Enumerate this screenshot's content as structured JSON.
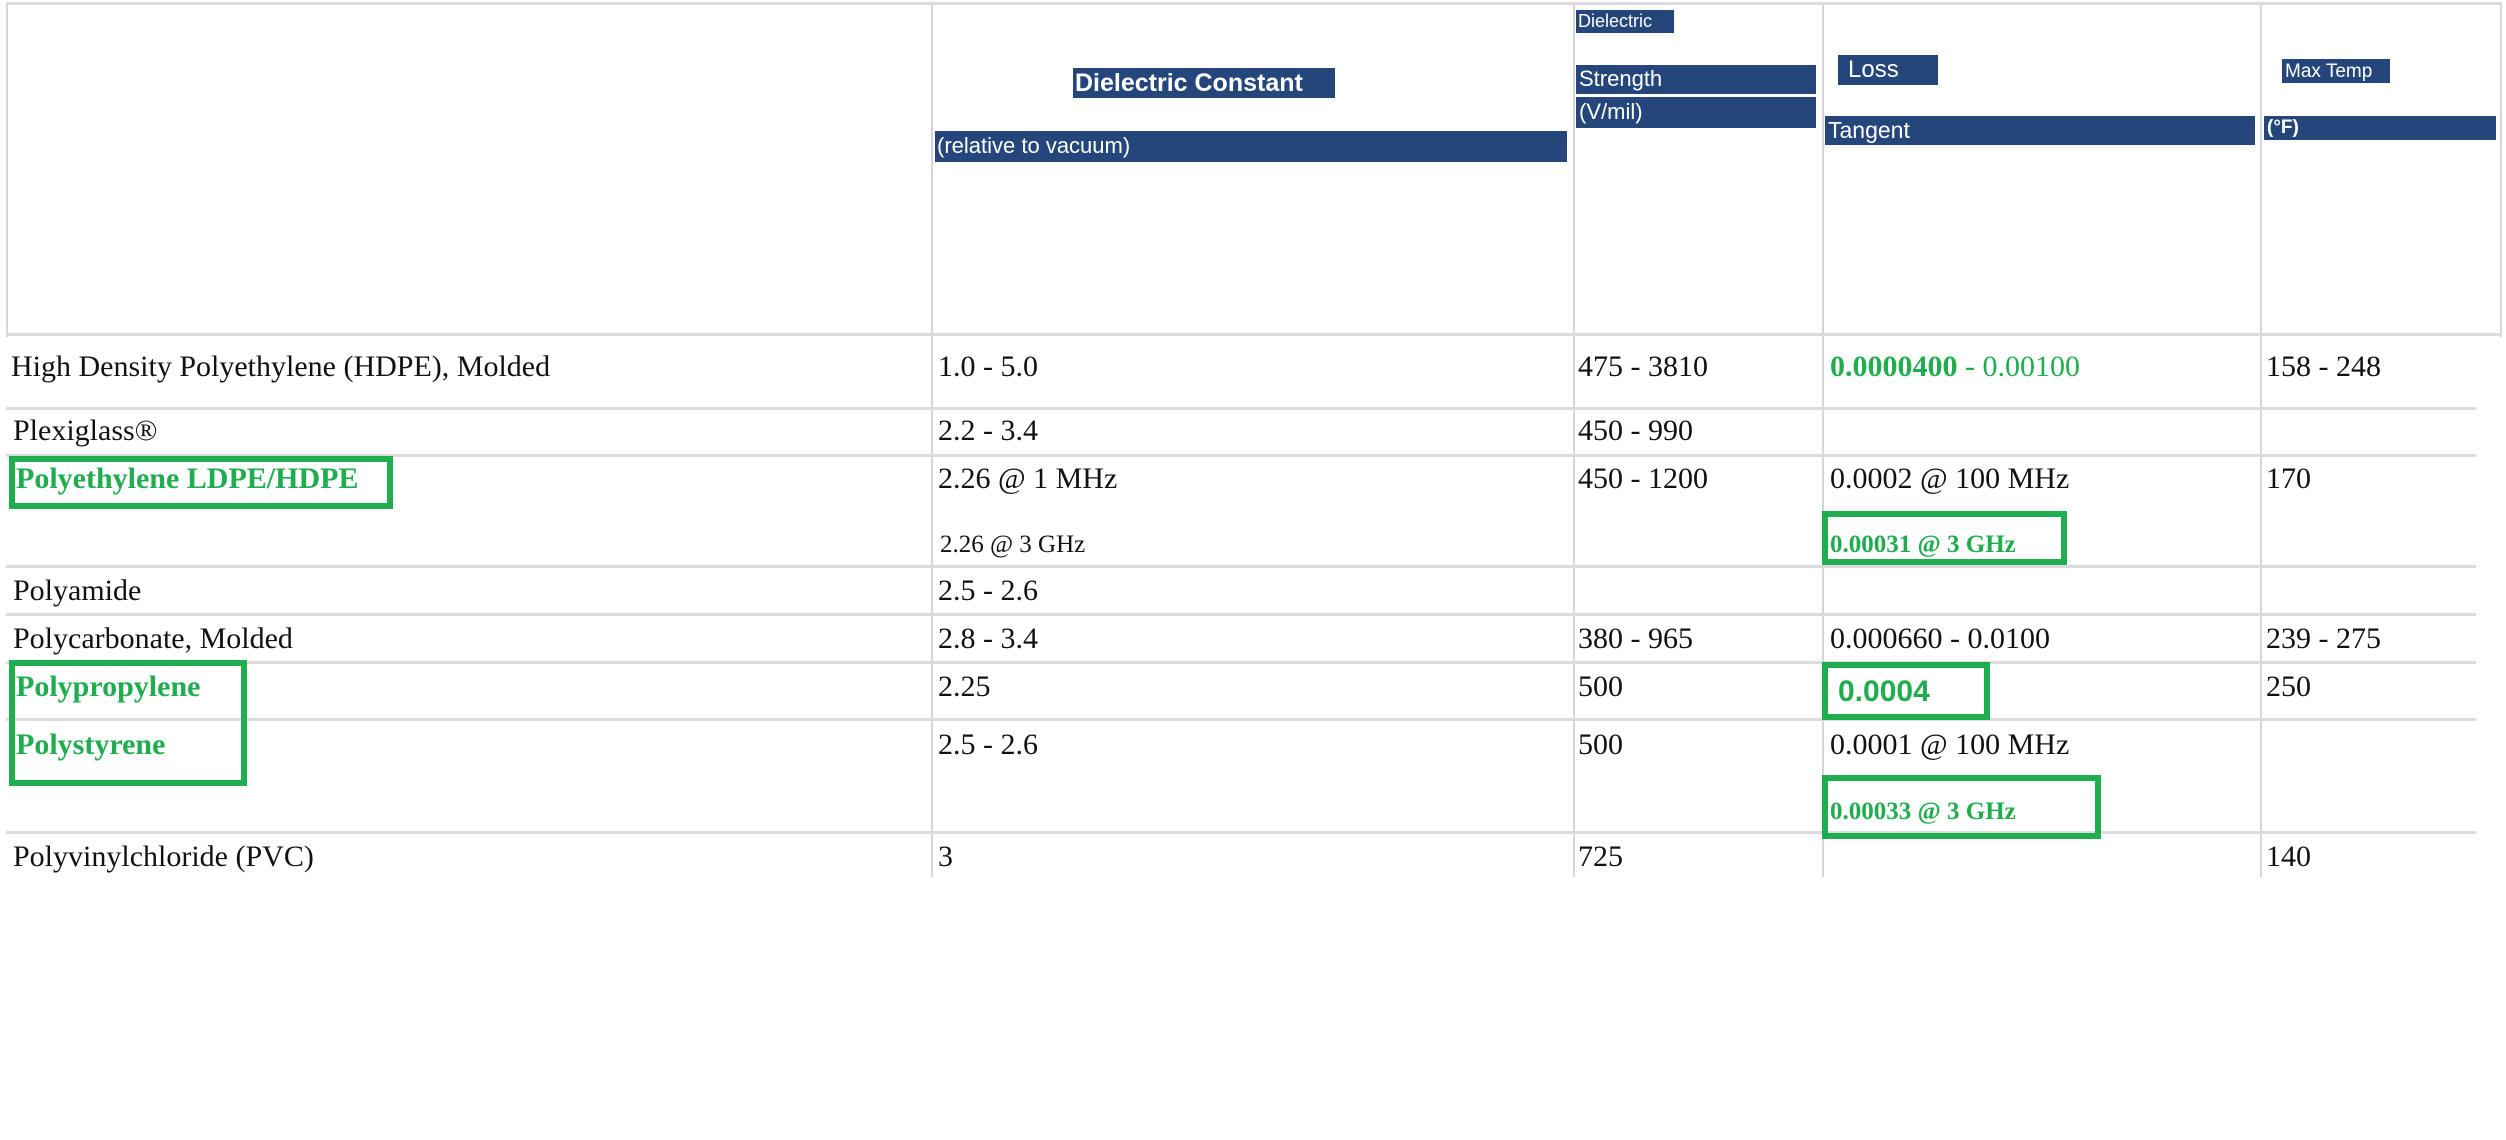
{
  "header": {
    "dielectric_constant": "Dielectric Constant",
    "relative_to_vacuum": "(relative to vacuum)",
    "dielectric": "Dielectric",
    "strength": "Strength",
    "v_mil": "(V/mil)",
    "loss": "Loss",
    "tangent": "Tangent",
    "max_temp": "Max Temp",
    "deg_f": "(°F)"
  },
  "rows": [
    {
      "material": "High Density Polyethylene (HDPE), Molded",
      "dielectric_constant": "1.0 - 5.0",
      "strength": "475 - 3810",
      "loss_a": "0.0000400",
      "loss_sep": " - ",
      "loss_b": "0.00100",
      "max_temp": "158 - 248"
    },
    {
      "material": "Plexiglass®",
      "dielectric_constant": "2.2 - 3.4",
      "strength": "450 - 990",
      "loss": "",
      "max_temp": ""
    },
    {
      "material": "Polyethylene LDPE/HDPE",
      "dielectric_constant": "2.26 @ 1 MHz",
      "dielectric_constant_2": "2.26 @ 3 GHz",
      "strength": "450 - 1200",
      "loss": "0.0002 @ 100 MHz",
      "loss_2": "0.00031 @ 3 GHz",
      "max_temp": "170"
    },
    {
      "material": "Polyamide",
      "dielectric_constant": "2.5 - 2.6",
      "strength": "",
      "loss": "",
      "max_temp": ""
    },
    {
      "material": "Polycarbonate, Molded",
      "dielectric_constant": "2.8 - 3.4",
      "strength": "380 - 965",
      "loss": "0.000660 - 0.0100",
      "max_temp": "239 - 275"
    },
    {
      "material": "Polypropylene",
      "dielectric_constant": "2.25",
      "strength": "500",
      "loss": "0.0004",
      "max_temp": "250"
    },
    {
      "material": "Polystyrene",
      "dielectric_constant": "2.5 - 2.6",
      "strength": "500",
      "loss": "0.0001 @ 100 MHz",
      "loss_2": "0.00033 @ 3 GHz",
      "max_temp": ""
    },
    {
      "material": "Polyvinylchloride (PVC)",
      "dielectric_constant": "3",
      "strength": "725",
      "loss": "",
      "max_temp": "140"
    }
  ],
  "colors": {
    "header_bar": "#24467a",
    "highlight": "#1fad4e",
    "grid": "#d6d6d6"
  }
}
